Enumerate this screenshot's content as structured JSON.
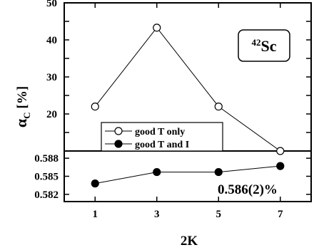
{
  "chart_data": [
    {
      "type": "line",
      "panel": "upper",
      "x": [
        1,
        3,
        5,
        7
      ],
      "ylim": [
        10,
        50
      ],
      "xlim": [
        0,
        8
      ],
      "yticks": [
        "20",
        "30",
        "40",
        "50"
      ],
      "ylabel": "αC [%]",
      "ylabel_main": "α",
      "ylabel_sub": "C",
      "ylabel_unit": "[%]",
      "series": [
        {
          "name": "good T only",
          "marker": "open-circle",
          "values": [
            22,
            43.3,
            22,
            10
          ]
        }
      ],
      "legend": {
        "placement": "bottom-left",
        "entries": [
          {
            "label": "good T only",
            "marker": "open-circle"
          },
          {
            "label": "good T and I",
            "marker": "filled-circle"
          }
        ]
      },
      "annotation": {
        "mass": "42",
        "element": "Sc"
      }
    },
    {
      "type": "line",
      "panel": "lower",
      "x": [
        1,
        3,
        5,
        7
      ],
      "xticks": [
        "1",
        "3",
        "5",
        "7"
      ],
      "xlabel": "2K",
      "ylim": [
        0.5808,
        0.5892
      ],
      "yticks": [
        "0.582",
        "0.585",
        "0.588"
      ],
      "series": [
        {
          "name": "good T and I",
          "marker": "filled-circle",
          "values": [
            0.5838,
            0.5857,
            0.5857,
            0.5867
          ]
        }
      ],
      "annotation": "0.586(2)%"
    }
  ]
}
